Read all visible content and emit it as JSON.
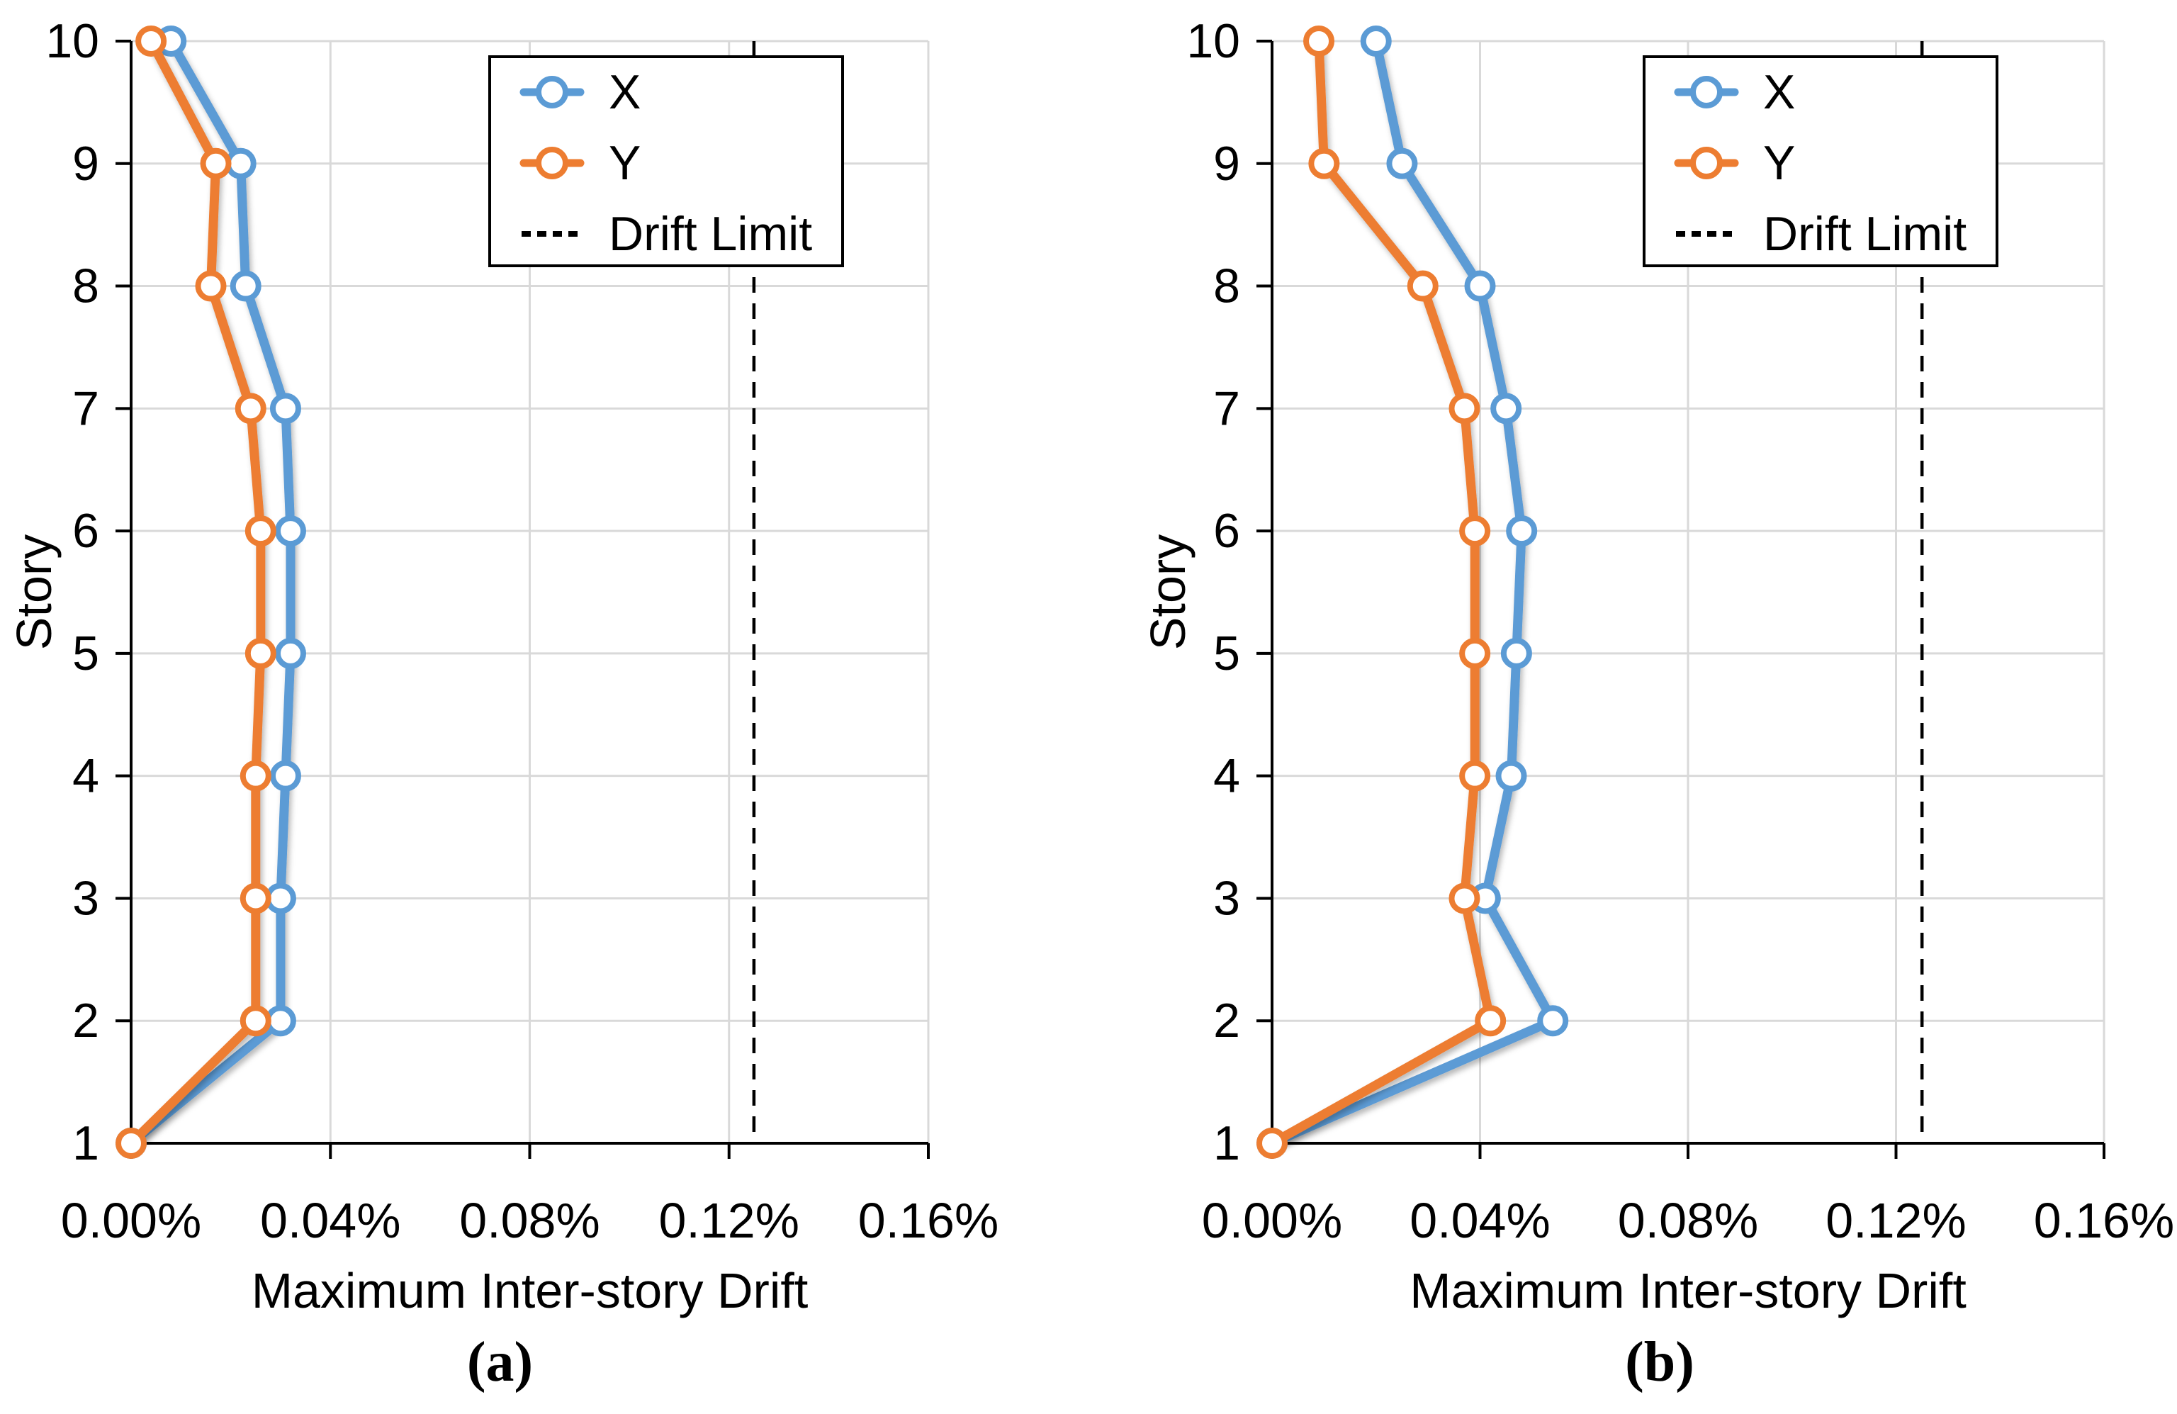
{
  "figure": {
    "background": "#FFFFFF",
    "grid_color": "#D9D9D9",
    "axis_color": "#000000"
  },
  "chart_data": [
    {
      "type": "line",
      "panel": "a",
      "caption": "(a)",
      "xlabel": "Maximum Inter-story Drift",
      "ylabel": "Story",
      "x_ticks": [
        "0.00%",
        "0.04%",
        "0.08%",
        "0.12%",
        "0.16%"
      ],
      "x_tick_values": [
        0,
        0.04,
        0.08,
        0.12,
        0.16
      ],
      "xlim": [
        0,
        0.16
      ],
      "x_unit": "percent",
      "stories": [
        1,
        2,
        3,
        4,
        5,
        6,
        7,
        8,
        9,
        10
      ],
      "grid": true,
      "legend_position": "upper-right",
      "series": [
        {
          "name": "X",
          "color": "#5B9BD5",
          "marker": "open-circle",
          "values_percent": [
            0.0,
            0.03,
            0.03,
            0.031,
            0.032,
            0.032,
            0.031,
            0.023,
            0.022,
            0.008
          ]
        },
        {
          "name": "Y",
          "color": "#ED7D31",
          "marker": "open-circle",
          "values_percent": [
            0.0,
            0.025,
            0.025,
            0.025,
            0.026,
            0.026,
            0.024,
            0.016,
            0.017,
            0.004
          ]
        }
      ],
      "drift_limit": {
        "label": "Drift Limit",
        "value_percent": 0.125,
        "color": "#000000",
        "style": "dashed"
      }
    },
    {
      "type": "line",
      "panel": "b",
      "caption": "(b)",
      "xlabel": "Maximum Inter-story Drift",
      "ylabel": "Story",
      "x_ticks": [
        "0.00%",
        "0.04%",
        "0.08%",
        "0.12%",
        "0.16%"
      ],
      "x_tick_values": [
        0,
        0.04,
        0.08,
        0.12,
        0.16
      ],
      "xlim": [
        0,
        0.16
      ],
      "x_unit": "percent",
      "stories": [
        1,
        2,
        3,
        4,
        5,
        6,
        7,
        8,
        9,
        10
      ],
      "grid": true,
      "legend_position": "upper-right",
      "series": [
        {
          "name": "X",
          "color": "#5B9BD5",
          "marker": "open-circle",
          "values_percent": [
            0.0,
            0.054,
            0.041,
            0.046,
            0.047,
            0.048,
            0.045,
            0.04,
            0.025,
            0.02
          ]
        },
        {
          "name": "Y",
          "color": "#ED7D31",
          "marker": "open-circle",
          "values_percent": [
            0.0,
            0.042,
            0.037,
            0.039,
            0.039,
            0.039,
            0.037,
            0.029,
            0.01,
            0.009
          ]
        }
      ],
      "drift_limit": {
        "label": "Drift Limit",
        "value_percent": 0.125,
        "color": "#000000",
        "style": "dashed"
      }
    }
  ]
}
